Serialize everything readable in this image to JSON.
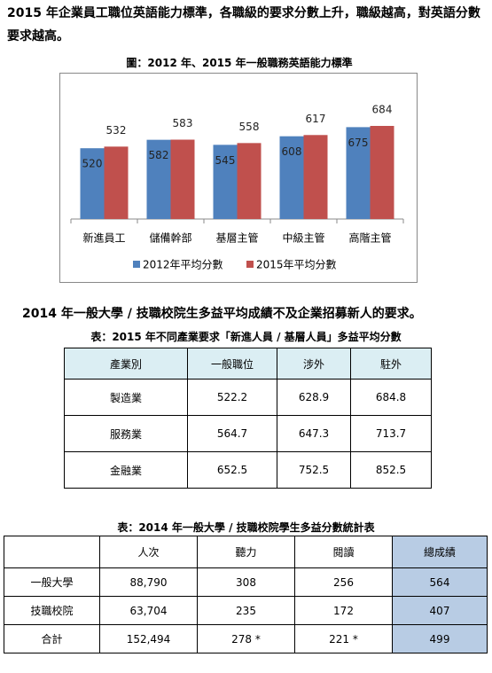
{
  "lead": "2015 年企業員工職位英語能力標準，各職級的要求分數上升，職級越高，對英語分數要求越高。",
  "chart_data": {
    "type": "bar",
    "title": "圖：2012 年、2015 年一般職務英語能力標準",
    "categories": [
      "新進員工",
      "儲備幹部",
      "基層主管",
      "中級主管",
      "高階主管"
    ],
    "series": [
      {
        "name": "2012年平均分數",
        "color": "#4f81bd",
        "values": [
          520,
          582,
          545,
          608,
          675
        ]
      },
      {
        "name": "2015年平均分數",
        "color": "#c0504d",
        "values": [
          532,
          583,
          558,
          617,
          684
        ]
      }
    ],
    "ylim": [
      0,
      1000
    ],
    "legend": "bottom"
  },
  "section2": "2014 年一般大學 / 技職校院生多益平均成績不及企業招募新人的要求。",
  "table1": {
    "caption": "表：2015 年不同產業要求「新進人員 / 基層人員」多益平均分數",
    "header": [
      "產業別",
      "一般職位",
      "涉外",
      "駐外"
    ],
    "rows": [
      [
        "製造業",
        "522.2",
        "628.9",
        "684.8"
      ],
      [
        "服務業",
        "564.7",
        "647.3",
        "713.7"
      ],
      [
        "金融業",
        "652.5",
        "752.5",
        "852.5"
      ]
    ]
  },
  "table2": {
    "caption": "表：2014 年一般大學 / 技職校院學生多益分數統計表",
    "header": [
      "人次",
      "聽力",
      "閱讀",
      "總成績"
    ],
    "rows": [
      [
        "一般大學",
        "88,790",
        "308",
        "256",
        "564"
      ],
      [
        "技職校院",
        "63,704",
        "235",
        "172",
        "407"
      ],
      [
        "合計",
        "152,494",
        "278 *",
        "221 *",
        "499"
      ]
    ]
  }
}
